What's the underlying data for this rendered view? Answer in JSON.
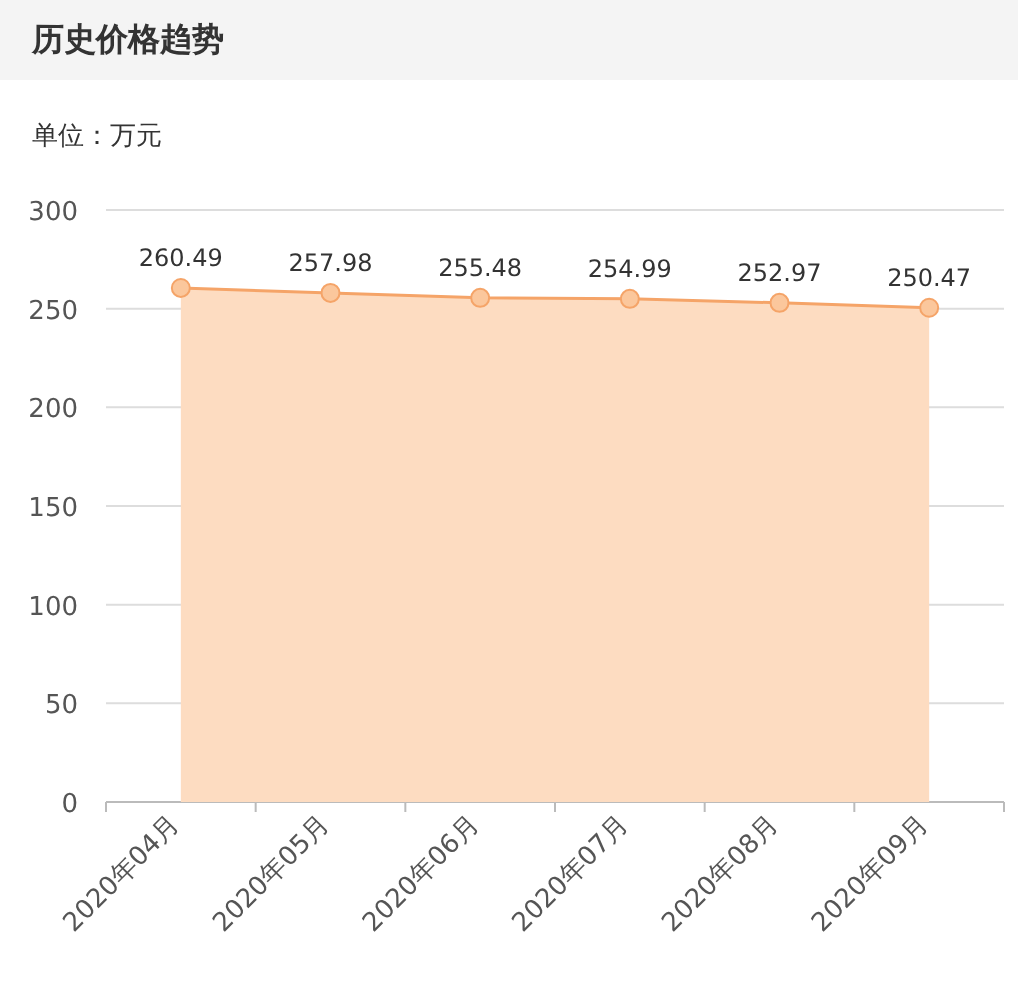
{
  "chart_data": {
    "type": "area",
    "title": "历史价格趋势",
    "subtitle": "单位：万元",
    "categories": [
      "2020年04月",
      "2020年05月",
      "2020年06月",
      "2020年07月",
      "2020年08月",
      "2020年09月"
    ],
    "series": [
      {
        "color": "#f5a468",
        "values": [
          260.49,
          257.98,
          255.48,
          254.99,
          252.97,
          250.47
        ]
      }
    ],
    "ylim": [
      0,
      300
    ],
    "yticks": [
      0,
      50,
      100,
      150,
      200,
      250,
      300
    ],
    "grid": "y",
    "marker": "circle",
    "line_style": "solid",
    "data_labels": true
  }
}
